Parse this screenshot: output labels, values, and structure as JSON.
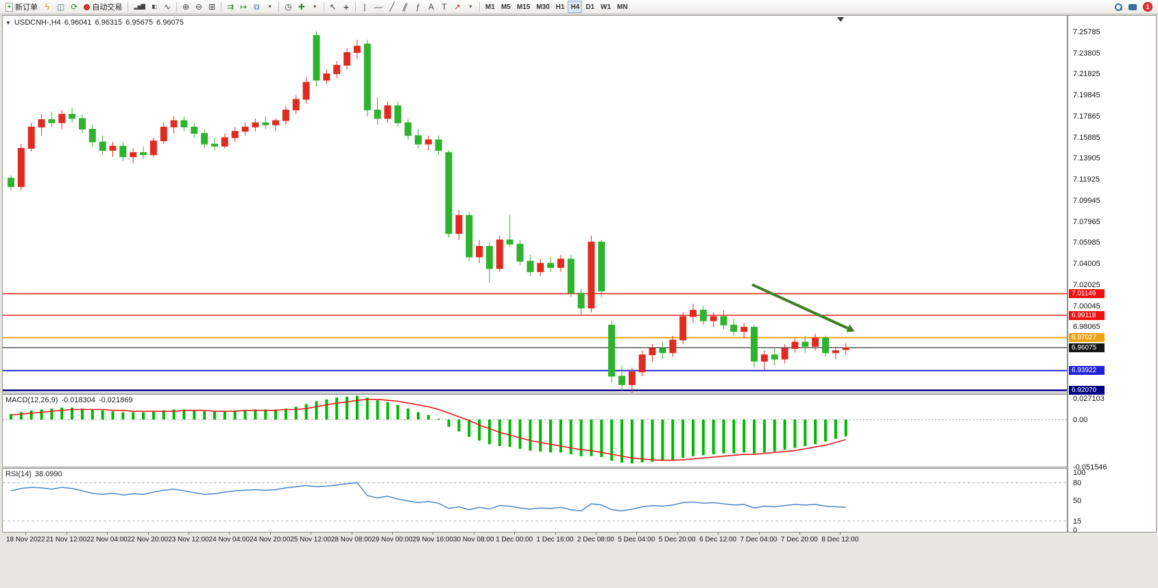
{
  "toolbar": {
    "items": [
      {
        "name": "new-order-button",
        "icon": "new-order-icon",
        "icon_class": "ic-doc",
        "label": "新订单"
      },
      {
        "name": "metaeditor-button",
        "icon": "lightning-icon",
        "glyph": "ϟ",
        "glyph_color": "#c79810"
      },
      {
        "name": "chart-window-button",
        "icon": "chart-window-icon",
        "glyph": "◫",
        "glyph_color": "#46699c"
      },
      {
        "name": "refresh-button",
        "icon": "refresh-icon",
        "glyph": "⟳",
        "glyph_color": "#2e8b2e"
      },
      {
        "name": "autotrading-button",
        "icon": "autotrading-status-icon",
        "icon_class": "ic-dot",
        "label": "自动交易"
      },
      {
        "type": "sep"
      },
      {
        "name": "bar-chart-button",
        "icon": "bar-chart-icon",
        "glyph": "▂▅▇",
        "glyph_class": "g-sm"
      },
      {
        "name": "candlestick-button",
        "icon": "candlestick-icon",
        "glyph": "▮▯",
        "glyph_class": "g-sm"
      },
      {
        "name": "line-chart-button",
        "icon": "line-chart-icon",
        "glyph": "∿"
      },
      {
        "type": "sep"
      },
      {
        "name": "zoom-in-button",
        "icon": "zoom-in-icon",
        "glyph": "⊕"
      },
      {
        "name": "zoom-out-button",
        "icon": "zoom-out-icon",
        "glyph": "⊖"
      },
      {
        "name": "tile-windows-button",
        "icon": "tile-windows-icon",
        "glyph": "⊞"
      },
      {
        "type": "sep"
      },
      {
        "name": "auto-scroll-button",
        "icon": "auto-scroll-icon",
        "glyph": "⇉",
        "glyph_color": "#2e7d32"
      },
      {
        "name": "chart-shift-button",
        "icon": "chart-shift-icon",
        "glyph": "↦",
        "glyph_color": "#2e7d32"
      },
      {
        "name": "new-chart-button",
        "icon": "new-chart-icon",
        "glyph": "⧉",
        "glyph_color": "#46699c"
      },
      {
        "name": "profiles-dropdown",
        "icon": "chevron-down-icon",
        "glyph": "▾",
        "glyph_class": "g-sm"
      },
      {
        "type": "sep"
      },
      {
        "name": "clock-button",
        "icon": "clock-icon",
        "glyph": "◷"
      },
      {
        "name": "indicators-button",
        "icon": "indicators-add-icon",
        "glyph": "✚",
        "glyph_color": "#2e8b2e"
      },
      {
        "name": "indicators-dropdown",
        "icon": "chevron-down-icon",
        "glyph": "▾",
        "glyph_class": "g-sm"
      },
      {
        "type": "sep"
      },
      {
        "name": "cursor-button",
        "icon": "cursor-icon",
        "glyph": "↖"
      },
      {
        "name": "crosshair-button",
        "icon": "crosshair-icon",
        "glyph": "+",
        "glyph_class": "g-bold"
      },
      {
        "type": "sep"
      },
      {
        "name": "vertical-line-button",
        "icon": "vertical-line-icon",
        "glyph": "|"
      },
      {
        "name": "horizontal-line-button",
        "icon": "horizontal-line-icon",
        "glyph": "―"
      },
      {
        "name": "trendline-button",
        "icon": "trendline-icon",
        "glyph": "╱"
      },
      {
        "name": "channel-button",
        "icon": "channel-icon",
        "glyph": "∥",
        "glyph_class": "g-skew"
      },
      {
        "name": "fibonacci-button",
        "icon": "fibonacci-icon",
        "glyph": "ƒ"
      },
      {
        "name": "text-button",
        "icon": "text-icon",
        "glyph": "A"
      },
      {
        "name": "text-label-button",
        "icon": "text-label-icon",
        "glyph": "T"
      },
      {
        "name": "arrows-button",
        "icon": "arrow-object-icon",
        "glyph": "↗",
        "glyph_color": "#b03a2e"
      },
      {
        "name": "objects-dropdown",
        "icon": "chevron-down-icon",
        "glyph": "▾",
        "glyph_class": "g-sm"
      },
      {
        "type": "sep"
      },
      {
        "name": "timeframe-m1-button",
        "label": "M1",
        "tf": true
      },
      {
        "name": "timeframe-m5-button",
        "label": "M5",
        "tf": true
      },
      {
        "name": "timeframe-m15-button",
        "label": "M15",
        "tf": true
      },
      {
        "name": "timeframe-m30-button",
        "label": "M30",
        "tf": true
      },
      {
        "name": "timeframe-h1-button",
        "label": "H1",
        "tf": true
      },
      {
        "name": "timeframe-h4-button",
        "label": "H4",
        "tf": true,
        "active": true
      },
      {
        "name": "timeframe-d1-button",
        "label": "D1",
        "tf": true
      },
      {
        "name": "timeframe-w1-button",
        "label": "W1",
        "tf": true
      },
      {
        "name": "timeframe-mn-button",
        "label": "MN",
        "tf": true
      },
      {
        "type": "spacer"
      },
      {
        "name": "search-button",
        "icon": "search-icon",
        "icon_class": "ic-search"
      },
      {
        "name": "chat-button",
        "icon": "chat-icon",
        "icon_class": "ic-chat"
      },
      {
        "name": "notification-badge",
        "icon": "notification-count-icon",
        "icon_class": "ic-badge",
        "badge": "1"
      }
    ]
  },
  "chart": {
    "one_click_glyph": "▼",
    "symbol_line": {
      "symbol": "USDCNH-,H4",
      "open": "6.96041",
      "high": "6.96315",
      "low": "6.95675",
      "close": "6.96075"
    }
  },
  "chart_data": {
    "type": "candlestick",
    "title": "USDCNH-,H4",
    "timeframe": "H4",
    "colors": {
      "bull": "#df2b20",
      "bear": "#2db32d",
      "background": "#ffffff"
    },
    "price_axis": {
      "view_max": 7.2725,
      "view_min": 6.9185,
      "ticks": [
        "7.25785",
        "7.23805",
        "7.21825",
        "7.19845",
        "7.17865",
        "7.15885",
        "7.13905",
        "7.11925",
        "7.09945",
        "7.07965",
        "7.05985",
        "7.04005",
        "7.02025",
        "7.00045",
        "6.98065"
      ]
    },
    "time_labels": [
      "18 Nov 2022",
      "21 Nov 12:00",
      "22 Nov 04:00",
      "22 Nov 20:00",
      "23 Nov 12:00",
      "24 Nov 04:00",
      "24 Nov 20:00",
      "25 Nov 12:00",
      "28 Nov 08:00",
      "29 Nov 00:00",
      "29 Nov 16:00",
      "30 Nov 08:00",
      "1 Dec 00:00",
      "1 Dec 16:00",
      "2 Dec 08:00",
      "5 Dec 04:00",
      "5 Dec 20:00",
      "6 Dec 12:00",
      "7 Dec 04:00",
      "7 Dec 20:00",
      "8 Dec 12:00"
    ],
    "hlines": [
      {
        "name": "resistance-line-upper",
        "price": 7.01149,
        "label": "7.01149",
        "color": "#ee1111",
        "width": 1.4
      },
      {
        "name": "resistance-line-lower",
        "price": 6.99118,
        "label": "6.99118",
        "color": "#ee1111",
        "width": 1.4
      },
      {
        "name": "pivot-line-orange",
        "price": 6.97027,
        "label": "6.97027",
        "color": "#efa214",
        "width": 2
      },
      {
        "name": "bid-price-line",
        "price": 6.96075,
        "label": "6.96075",
        "color": "#161616",
        "width": 1
      },
      {
        "name": "support-line-upper",
        "price": 6.93922,
        "label": "6.93922",
        "color": "#2222dd",
        "width": 2
      },
      {
        "name": "support-line-lower",
        "price": 6.9207,
        "label": "6.92070",
        "color": "#000080",
        "width": 2.5
      }
    ],
    "arrow": {
      "from_ci": 72.8,
      "from_price": 7.02,
      "to_ci": 82.2,
      "to_price": 6.979,
      "color": "#3f8024"
    },
    "candles": [
      [
        7.12,
        7.1225,
        7.108,
        7.112
      ],
      [
        7.112,
        7.152,
        7.1085,
        7.148
      ],
      [
        7.148,
        7.172,
        7.145,
        7.168
      ],
      [
        7.168,
        7.18,
        7.16,
        7.175
      ],
      [
        7.175,
        7.1825,
        7.168,
        7.172
      ],
      [
        7.172,
        7.184,
        7.166,
        7.18
      ],
      [
        7.18,
        7.186,
        7.172,
        7.176
      ],
      [
        7.176,
        7.18,
        7.162,
        7.166
      ],
      [
        7.166,
        7.17,
        7.15,
        7.154
      ],
      [
        7.154,
        7.16,
        7.142,
        7.146
      ],
      [
        7.146,
        7.154,
        7.14,
        7.15
      ],
      [
        7.15,
        7.154,
        7.136,
        7.14
      ],
      [
        7.14,
        7.148,
        7.134,
        7.144
      ],
      [
        7.144,
        7.15,
        7.138,
        7.142
      ],
      [
        7.142,
        7.158,
        7.14,
        7.155
      ],
      [
        7.155,
        7.172,
        7.152,
        7.168
      ],
      [
        7.168,
        7.178,
        7.162,
        7.174
      ],
      [
        7.174,
        7.178,
        7.164,
        7.168
      ],
      [
        7.168,
        7.172,
        7.158,
        7.162
      ],
      [
        7.162,
        7.166,
        7.148,
        7.152
      ],
      [
        7.152,
        7.158,
        7.146,
        7.15
      ],
      [
        7.15,
        7.162,
        7.148,
        7.158
      ],
      [
        7.158,
        7.168,
        7.154,
        7.164
      ],
      [
        7.164,
        7.172,
        7.16,
        7.168
      ],
      [
        7.168,
        7.176,
        7.164,
        7.172
      ],
      [
        7.172,
        7.178,
        7.166,
        7.17
      ],
      [
        7.17,
        7.176,
        7.164,
        7.174
      ],
      [
        7.174,
        7.188,
        7.17,
        7.184
      ],
      [
        7.184,
        7.198,
        7.18,
        7.194
      ],
      [
        7.194,
        7.215,
        7.19,
        7.21
      ],
      [
        7.254,
        7.258,
        7.206,
        7.212
      ],
      [
        7.212,
        7.222,
        7.208,
        7.218
      ],
      [
        7.218,
        7.23,
        7.214,
        7.226
      ],
      [
        7.226,
        7.242,
        7.222,
        7.238
      ],
      [
        7.238,
        7.25,
        7.232,
        7.244
      ],
      [
        7.246,
        7.25,
        7.178,
        7.184
      ],
      [
        7.184,
        7.196,
        7.17,
        7.176
      ],
      [
        7.176,
        7.192,
        7.172,
        7.188
      ],
      [
        7.188,
        7.192,
        7.168,
        7.172
      ],
      [
        7.172,
        7.176,
        7.156,
        7.16
      ],
      [
        7.16,
        7.166,
        7.148,
        7.152
      ],
      [
        7.152,
        7.16,
        7.146,
        7.156
      ],
      [
        7.156,
        7.16,
        7.142,
        7.146
      ],
      [
        7.144,
        7.146,
        7.064,
        7.068
      ],
      [
        7.068,
        7.09,
        7.062,
        7.085
      ],
      [
        7.085,
        7.088,
        7.042,
        7.046
      ],
      [
        7.046,
        7.062,
        7.04,
        7.056
      ],
      [
        7.056,
        7.06,
        7.022,
        7.035
      ],
      [
        7.035,
        7.066,
        7.032,
        7.062
      ],
      [
        7.062,
        7.085,
        7.055,
        7.058
      ],
      [
        7.058,
        7.062,
        7.038,
        7.042
      ],
      [
        7.042,
        7.048,
        7.028,
        7.032
      ],
      [
        7.032,
        7.044,
        7.028,
        7.04
      ],
      [
        7.04,
        7.046,
        7.032,
        7.036
      ],
      [
        7.036,
        7.048,
        7.032,
        7.044
      ],
      [
        7.044,
        7.048,
        7.008,
        7.012
      ],
      [
        7.012,
        7.016,
        6.992,
        6.998
      ],
      [
        6.998,
        7.066,
        6.994,
        7.06
      ],
      [
        7.06,
        7.062,
        7.008,
        7.014
      ],
      [
        6.982,
        6.986,
        6.928,
        6.934
      ],
      [
        6.934,
        6.944,
        6.92,
        6.926
      ],
      [
        6.926,
        6.942,
        6.917,
        6.938
      ],
      [
        6.938,
        6.958,
        6.934,
        6.954
      ],
      [
        6.954,
        6.964,
        6.948,
        6.96
      ],
      [
        6.96,
        6.966,
        6.95,
        6.956
      ],
      [
        6.956,
        6.972,
        6.952,
        6.968
      ],
      [
        6.968,
        6.994,
        6.964,
        6.99
      ],
      [
        6.99,
        7.002,
        6.984,
        6.996
      ],
      [
        6.996,
        7.0,
        6.982,
        6.986
      ],
      [
        6.986,
        6.994,
        6.98,
        6.99
      ],
      [
        6.99,
        6.996,
        6.978,
        6.982
      ],
      [
        6.982,
        6.988,
        6.972,
        6.976
      ],
      [
        6.976,
        6.984,
        6.97,
        6.98
      ],
      [
        6.98,
        6.982,
        6.942,
        6.948
      ],
      [
        6.948,
        6.958,
        6.94,
        6.954
      ],
      [
        6.954,
        6.96,
        6.944,
        6.95
      ],
      [
        6.95,
        6.964,
        6.946,
        6.96
      ],
      [
        6.96,
        6.97,
        6.956,
        6.966
      ],
      [
        6.966,
        6.972,
        6.956,
        6.962
      ],
      [
        6.962,
        6.974,
        6.958,
        6.97
      ],
      [
        6.97,
        6.972,
        6.952,
        6.956
      ],
      [
        6.956,
        6.962,
        6.95,
        6.958
      ],
      [
        6.959,
        6.965,
        6.954,
        6.96075
      ]
    ],
    "macd": {
      "label": "MACD(12,26,9)",
      "value_main": "-0.018304",
      "value_signal": "-0.021869",
      "scale": [
        "0.027103",
        "0.00",
        "-0.051546"
      ],
      "view_max": 0.027103,
      "view_min": -0.051546,
      "histogram_color": "#00b800",
      "signal_color": "#e81717",
      "histogram": [
        0.006,
        0.008,
        0.01,
        0.011,
        0.012,
        0.013,
        0.013,
        0.012,
        0.011,
        0.01,
        0.009,
        0.008,
        0.008,
        0.008,
        0.009,
        0.01,
        0.011,
        0.011,
        0.01,
        0.009,
        0.009,
        0.009,
        0.01,
        0.01,
        0.011,
        0.011,
        0.011,
        0.012,
        0.014,
        0.017,
        0.02,
        0.022,
        0.024,
        0.025,
        0.026,
        0.024,
        0.021,
        0.019,
        0.016,
        0.012,
        0.008,
        0.005,
        0.001,
        -0.008,
        -0.013,
        -0.019,
        -0.023,
        -0.027,
        -0.029,
        -0.03,
        -0.032,
        -0.034,
        -0.035,
        -0.036,
        -0.036,
        -0.038,
        -0.04,
        -0.04,
        -0.041,
        -0.045,
        -0.047,
        -0.048,
        -0.047,
        -0.046,
        -0.045,
        -0.044,
        -0.042,
        -0.04,
        -0.039,
        -0.038,
        -0.037,
        -0.037,
        -0.036,
        -0.037,
        -0.036,
        -0.035,
        -0.033,
        -0.031,
        -0.029,
        -0.027,
        -0.024,
        -0.021,
        -0.018304
      ],
      "signal": [
        0.005,
        0.006,
        0.007,
        0.008,
        0.009,
        0.01,
        0.011,
        0.011,
        0.011,
        0.011,
        0.01,
        0.01,
        0.009,
        0.009,
        0.009,
        0.009,
        0.009,
        0.01,
        0.01,
        0.01,
        0.009,
        0.009,
        0.009,
        0.01,
        0.01,
        0.01,
        0.01,
        0.011,
        0.011,
        0.012,
        0.014,
        0.016,
        0.018,
        0.019,
        0.021,
        0.022,
        0.022,
        0.021,
        0.02,
        0.018,
        0.016,
        0.014,
        0.011,
        0.007,
        0.003,
        -0.001,
        -0.006,
        -0.01,
        -0.014,
        -0.017,
        -0.02,
        -0.023,
        -0.025,
        -0.027,
        -0.029,
        -0.031,
        -0.033,
        -0.034,
        -0.036,
        -0.038,
        -0.04,
        -0.042,
        -0.043,
        -0.044,
        -0.0445,
        -0.0445,
        -0.044,
        -0.043,
        -0.042,
        -0.041,
        -0.04,
        -0.039,
        -0.038,
        -0.038,
        -0.037,
        -0.036,
        -0.035,
        -0.034,
        -0.032,
        -0.03,
        -0.028,
        -0.025,
        -0.021869
      ]
    },
    "rsi": {
      "label": "RSI(14)",
      "value": "38.0990",
      "scale": [
        "100",
        "80",
        "50",
        "15",
        "0"
      ],
      "levels": [
        80,
        15
      ],
      "color": "#4a86c8",
      "values": [
        66,
        70,
        72,
        71,
        69,
        72,
        70,
        66,
        62,
        60,
        62,
        59,
        61,
        60,
        64,
        67,
        69,
        66,
        63,
        60,
        61,
        64,
        66,
        67,
        68,
        67,
        68,
        71,
        73,
        75,
        73,
        74,
        76,
        78,
        80,
        58,
        54,
        57,
        52,
        49,
        46,
        48,
        45,
        36,
        39,
        34,
        38,
        35,
        41,
        40,
        37,
        35,
        37,
        36,
        38,
        34,
        32,
        44,
        42,
        34,
        32,
        35,
        39,
        41,
        40,
        42,
        46,
        47,
        45,
        46,
        44,
        42,
        43,
        37,
        40,
        39,
        41,
        43,
        42,
        43,
        40,
        39,
        38.099
      ]
    }
  }
}
